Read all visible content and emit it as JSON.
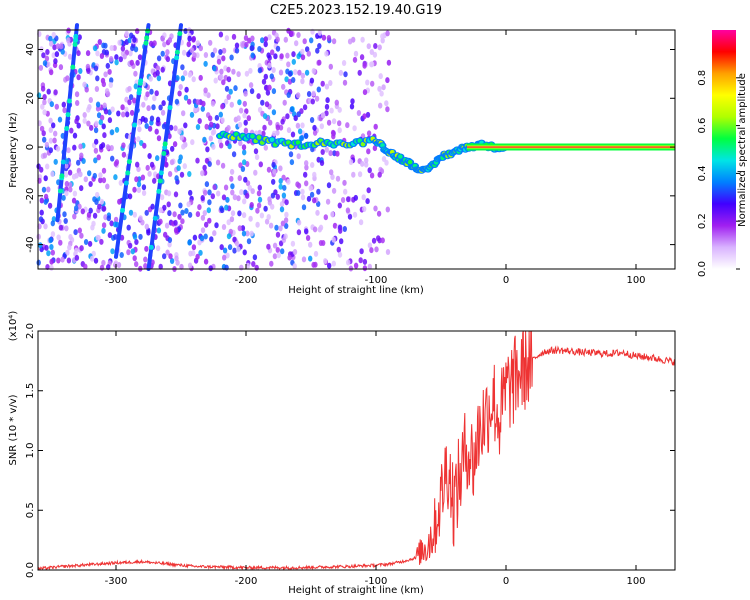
{
  "title": "C2E5.2023.152.19.40.G19",
  "chart_data": [
    {
      "type": "heatmap",
      "name": "spectrogram",
      "xlabel": "Height of straight line (km)",
      "ylabel": "Frequency (Hz)",
      "xlim": [
        -360,
        130
      ],
      "ylim": [
        -50,
        48
      ],
      "xticks": [
        -300,
        -200,
        -100,
        0,
        100
      ],
      "yticks": [
        -40,
        -20,
        0,
        20,
        40
      ],
      "colorbar": {
        "label": "Normalized spectral amplitude",
        "range": [
          0,
          1
        ],
        "ticks": [
          0.0,
          0.2,
          0.4,
          0.6,
          0.8
        ],
        "colormap": [
          "#ffffff",
          "#d9b3ff",
          "#a020f0",
          "#4000ff",
          "#0080ff",
          "#00e5e5",
          "#00ff40",
          "#b0ff00",
          "#ffff00",
          "#ffa000",
          "#ff0000",
          "#ff00a0"
        ]
      },
      "features": {
        "carrier": {
          "x_from": 0,
          "x_to": 130,
          "freq": 0,
          "amplitude": 0.95
        },
        "trace": [
          {
            "x": -220,
            "f": 5
          },
          {
            "x": -200,
            "f": 4
          },
          {
            "x": -180,
            "f": 2
          },
          {
            "x": -160,
            "f": 1
          },
          {
            "x": -140,
            "f": 2
          },
          {
            "x": -120,
            "f": 1
          },
          {
            "x": -100,
            "f": 3
          },
          {
            "x": -90,
            "f": -2
          },
          {
            "x": -80,
            "f": -5
          },
          {
            "x": -70,
            "f": -8
          },
          {
            "x": -60,
            "f": -10
          },
          {
            "x": -50,
            "f": -4
          },
          {
            "x": -40,
            "f": -2
          },
          {
            "x": -30,
            "f": 0
          },
          {
            "x": -20,
            "f": 1
          },
          {
            "x": -10,
            "f": 0
          },
          {
            "x": 0,
            "f": 0
          }
        ],
        "streaks": [
          {
            "x0": -345,
            "f0": -30,
            "x1": -330,
            "f1": 50
          },
          {
            "x0": -300,
            "f0": -45,
            "x1": -275,
            "f1": 50
          },
          {
            "x0": -275,
            "f0": -50,
            "x1": -250,
            "f1": 50
          }
        ],
        "noise_region": {
          "x_from": -360,
          "x_to": -90
        }
      }
    },
    {
      "type": "line",
      "name": "snr",
      "xlabel": "Height of straight line (km)",
      "ylabel": "SNR (10 * v/v)",
      "yscale_label": "(x10⁴)",
      "xlim": [
        -360,
        130
      ],
      "ylim": [
        0,
        2.0
      ],
      "xticks": [
        -300,
        -200,
        -100,
        0,
        100
      ],
      "yticks": [
        0.0,
        0.5,
        1.0,
        1.5,
        2.0
      ],
      "series": [
        {
          "name": "SNR",
          "color": "#ee3333",
          "x": [
            -360,
            -340,
            -300,
            -280,
            -260,
            -240,
            -200,
            -160,
            -120,
            -100,
            -90,
            -80,
            -70,
            -60,
            -55,
            -50,
            -45,
            -40,
            -35,
            -30,
            -25,
            -20,
            -15,
            -10,
            -5,
            0,
            5,
            10,
            15,
            20,
            25,
            30,
            40,
            60,
            80,
            90,
            100,
            110,
            120,
            130
          ],
          "y": [
            0.01,
            0.03,
            0.06,
            0.07,
            0.05,
            0.03,
            0.02,
            0.02,
            0.03,
            0.04,
            0.05,
            0.07,
            0.1,
            0.22,
            0.35,
            0.6,
            0.9,
            0.55,
            0.8,
            1.05,
            0.9,
            1.2,
            1.3,
            1.45,
            1.25,
            1.5,
            1.55,
            1.65,
            1.7,
            1.75,
            1.8,
            1.83,
            1.84,
            1.82,
            1.81,
            1.82,
            1.79,
            1.78,
            1.76,
            1.74
          ]
        }
      ]
    }
  ]
}
